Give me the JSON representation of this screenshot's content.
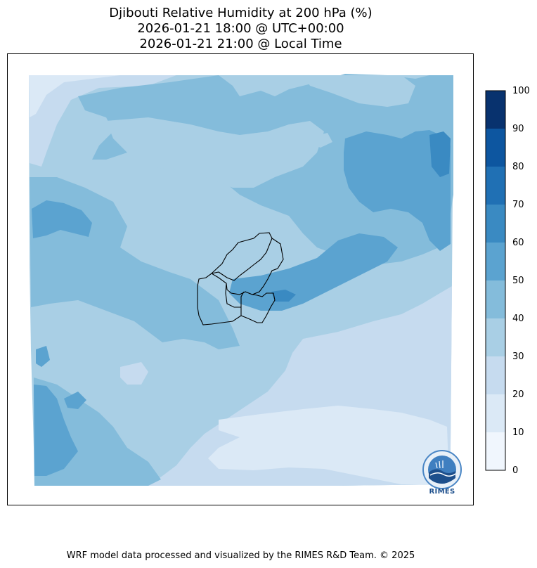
{
  "title": {
    "line1": "Djibouti Relative Humidity at 200 hPa (%)",
    "line2": "2026-01-21 18:00 @ UTC+00:00",
    "line3": "2026-01-21 21:00 @ Local Time"
  },
  "colorbar": {
    "ticks": [
      "0",
      "10",
      "20",
      "30",
      "40",
      "50",
      "60",
      "70",
      "80",
      "90",
      "100"
    ],
    "colors": [
      "#f0f6fd",
      "#dbe9f6",
      "#c6dbef",
      "#a9cfe5",
      "#84bcdb",
      "#5ba3d0",
      "#3a8ac2",
      "#2070b4",
      "#0d56a0",
      "#08326e"
    ]
  },
  "logo": {
    "text": "RIMES"
  },
  "footer": "WRF model data processed and visualized by the RIMES R&D Team. © 2025"
}
